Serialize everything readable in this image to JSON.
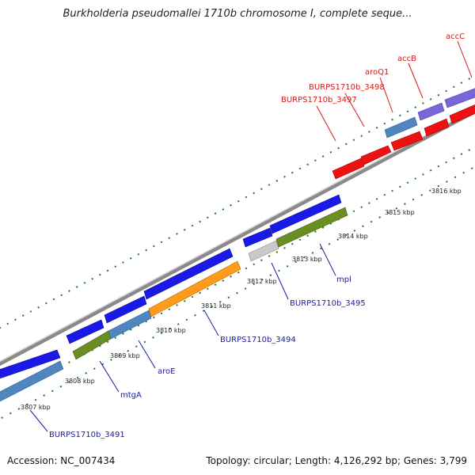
{
  "title": "Burkholderia pseudomallei 1710b chromosome I, complete seque...",
  "footer": {
    "accession": "Accession: NC_007434",
    "topology": "Topology: circular; Length: 4,126,292 bp; Genes: 3,799"
  },
  "scale_labels": [
    "3807 kbp",
    "3808 kbp",
    "3809 kbp",
    "3810 kbp",
    "3811 kbp",
    "3812 kbp",
    "3813 kbp",
    "3814 kbp",
    "3815 kbp",
    "3816 kbp"
  ],
  "gene_labels": [
    {
      "text": "BURPS1710b_3491",
      "color": "#1a1aa8"
    },
    {
      "text": "mtgA",
      "color": "#1a1aa8"
    },
    {
      "text": "aroE",
      "color": "#1a1aa8"
    },
    {
      "text": "BURPS1710b_3494",
      "color": "#1a1aa8"
    },
    {
      "text": "BURPS1710b_3495",
      "color": "#1a1aa8"
    },
    {
      "text": "mpl",
      "color": "#1a1aa8"
    },
    {
      "text": "BURPS1710b_3497",
      "color": "#d81818"
    },
    {
      "text": "BURPS1710b_3498",
      "color": "#d81818"
    },
    {
      "text": "aroQ1",
      "color": "#d81818"
    },
    {
      "text": "accB",
      "color": "#d81818"
    },
    {
      "text": "accC",
      "color": "#d81818"
    }
  ],
  "colors": {
    "blue": "#1a1ae8",
    "steel": "#4f86bf",
    "olive": "#6a8e22",
    "orange": "#ff9a1a",
    "gray": "#c9c9c9",
    "red": "#ee1111",
    "purple": "#7a66d8",
    "backbone": "#888888",
    "ticks": "#1e7a1e"
  }
}
